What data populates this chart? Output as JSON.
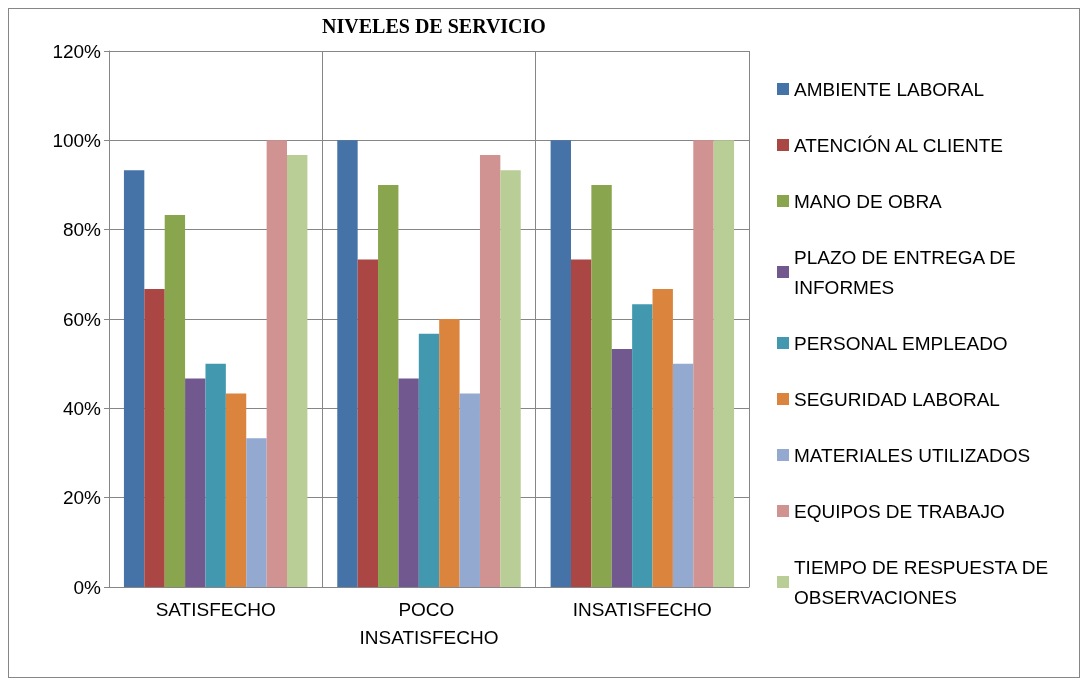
{
  "chart_data": {
    "type": "bar",
    "title": "NIVELES DE SERVICIO",
    "categories": [
      "SATISFECHO",
      "POCO INSATISFECHO",
      "INSATISFECHO"
    ],
    "series": [
      {
        "name": "AMBIENTE LABORAL",
        "color": "#4572a7",
        "values": [
          93.3,
          100,
          100
        ]
      },
      {
        "name": "ATENCIÓN AL CLIENTE",
        "color": "#aa4643",
        "values": [
          66.7,
          73.3,
          73.3
        ]
      },
      {
        "name": "MANO DE OBRA",
        "color": "#89a54e",
        "values": [
          83.3,
          90,
          90
        ]
      },
      {
        "name": "PLAZO DE ENTREGA DE INFORMES",
        "color": "#71588f",
        "values": [
          46.7,
          46.7,
          53.3
        ]
      },
      {
        "name": "PERSONAL EMPLEADO",
        "color": "#4198af",
        "values": [
          50,
          56.7,
          63.3
        ]
      },
      {
        "name": "SEGURIDAD LABORAL",
        "color": "#db843d",
        "values": [
          43.3,
          60,
          66.7
        ]
      },
      {
        "name": "MATERIALES UTILIZADOS",
        "color": "#93a9cf",
        "values": [
          33.3,
          43.3,
          50
        ]
      },
      {
        "name": "EQUIPOS DE TRABAJO",
        "color": "#d19392",
        "values": [
          100,
          96.7,
          100
        ]
      },
      {
        "name": "TIEMPO DE RESPUESTA DE OBSERVACIONES",
        "color": "#b9cd96",
        "values": [
          96.7,
          93.3,
          100
        ]
      }
    ],
    "ylim": [
      0,
      120
    ],
    "yticks": [
      {
        "value": 0,
        "label": "0%"
      },
      {
        "value": 20,
        "label": "20%"
      },
      {
        "value": 40,
        "label": "40%"
      },
      {
        "value": 60,
        "label": "60%"
      },
      {
        "value": 80,
        "label": "80%"
      },
      {
        "value": 100,
        "label": "100%"
      },
      {
        "value": 120,
        "label": "120%"
      }
    ],
    "grid": true,
    "legend": "right"
  }
}
